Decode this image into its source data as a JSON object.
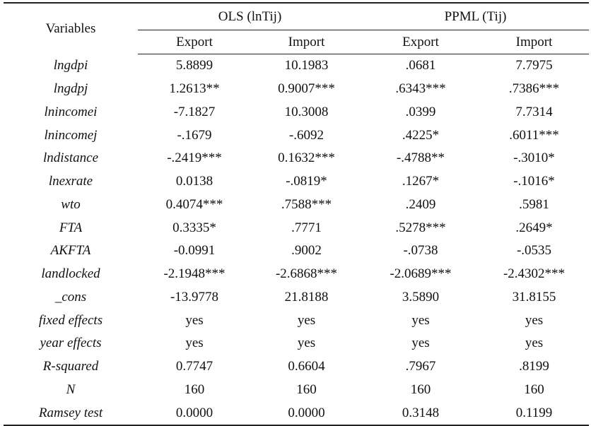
{
  "table": {
    "header": {
      "variables": "Variables",
      "groups": [
        "OLS (lnTij)",
        "PPML (Tij)"
      ],
      "subcolumns": [
        "Export",
        "Import",
        "Export",
        "Import"
      ]
    },
    "rows": [
      {
        "variable": "lngdpi",
        "values": [
          "5.8899",
          "10.1983",
          ".0681",
          "7.7975"
        ]
      },
      {
        "variable": "lngdpj",
        "values": [
          "1.2613**",
          "0.9007***",
          ".6343***",
          ".7386***"
        ]
      },
      {
        "variable": "lnincomei",
        "values": [
          "-7.1827",
          "10.3008",
          ".0399",
          "7.7314"
        ]
      },
      {
        "variable": "lnincomej",
        "values": [
          "-.1679",
          "-.6092",
          ".4225*",
          ".6011***"
        ]
      },
      {
        "variable": "lndistance",
        "values": [
          "-.2419***",
          "0.1632***",
          "-.4788**",
          "-.3010*"
        ]
      },
      {
        "variable": "lnexrate",
        "values": [
          "0.0138",
          "-.0819*",
          ".1267*",
          "-.1016*"
        ]
      },
      {
        "variable": "wto",
        "values": [
          "0.4074***",
          ".7588***",
          ".2409",
          ".5981"
        ]
      },
      {
        "variable": "FTA",
        "values": [
          "0.3335*",
          ".7771",
          ".5278***",
          ".2649*"
        ]
      },
      {
        "variable": "AKFTA",
        "values": [
          "-0.0991",
          ".9002",
          "-.0738",
          "-.0535"
        ]
      },
      {
        "variable": "landlocked",
        "values": [
          "-2.1948***",
          "-2.6868***",
          "-2.0689***",
          "-2.4302***"
        ]
      },
      {
        "variable": "_cons",
        "values": [
          "-13.9778",
          "21.8188",
          "3.5890",
          "31.8155"
        ]
      },
      {
        "variable": "fixed effects",
        "values": [
          "yes",
          "yes",
          "yes",
          "yes"
        ]
      },
      {
        "variable": "year effects",
        "values": [
          "yes",
          "yes",
          "yes",
          "yes"
        ]
      },
      {
        "variable": "R-squared",
        "values": [
          "0.7747",
          "0.6604",
          ".7967",
          ".8199"
        ]
      },
      {
        "variable": "N",
        "values": [
          "160",
          "160",
          "160",
          "160"
        ]
      },
      {
        "variable": "Ramsey test",
        "values": [
          "0.0000",
          "0.0000",
          "0.3148",
          "0.1199"
        ]
      }
    ]
  }
}
